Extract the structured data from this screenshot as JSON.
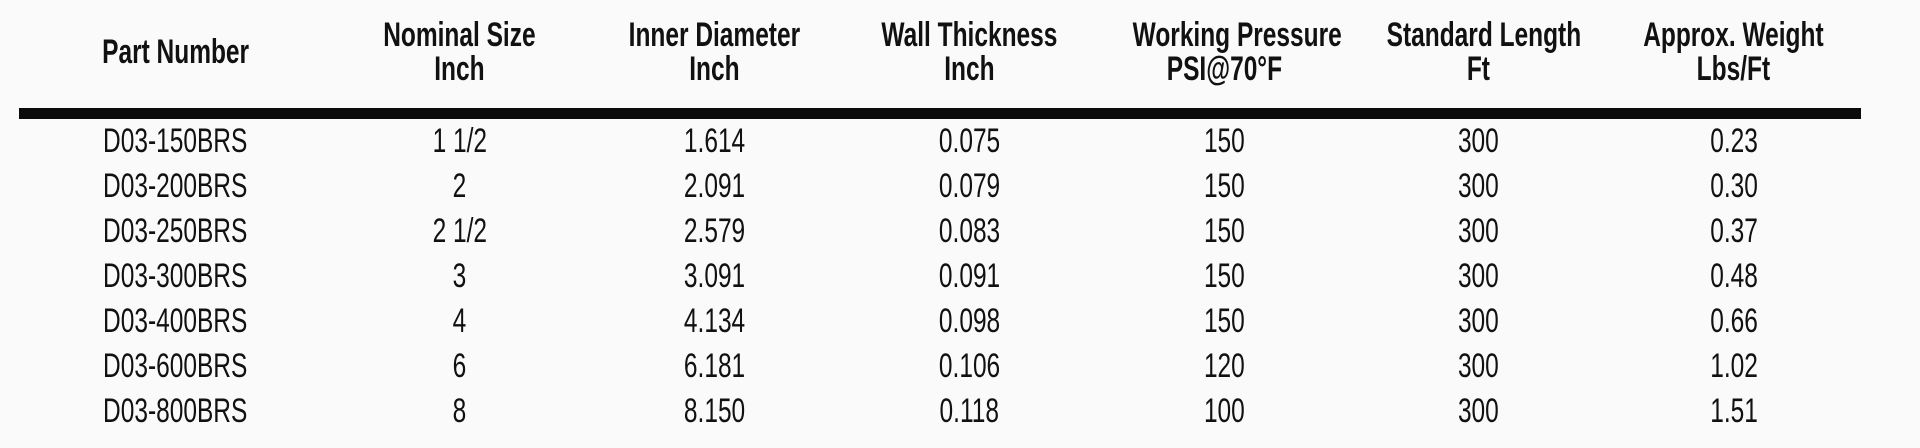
{
  "colors": {
    "background": "#fafafa",
    "text": "#111111",
    "header_divider": "#0b0b0b"
  },
  "table": {
    "columns": [
      {
        "line1": "Part Number",
        "line2": ""
      },
      {
        "line1": "Nominal Size",
        "line2": "Inch"
      },
      {
        "line1": "Inner Diameter",
        "line2": "Inch"
      },
      {
        "line1": "Wall Thickness",
        "line2": "Inch"
      },
      {
        "line1": "Working Pressure",
        "line2": "PSI@70°F"
      },
      {
        "line1": "Standard Length",
        "line2": "Ft"
      },
      {
        "line1": "Approx. Weight",
        "line2": "Lbs/Ft"
      }
    ],
    "rows": [
      [
        "D03-150BRS",
        "1 1/2",
        "1.614",
        "0.075",
        "150",
        "300",
        "0.23"
      ],
      [
        "D03-200BRS",
        "2",
        "2.091",
        "0.079",
        "150",
        "300",
        "0.30"
      ],
      [
        "D03-250BRS",
        "2 1/2",
        "2.579",
        "0.083",
        "150",
        "300",
        "0.37"
      ],
      [
        "D03-300BRS",
        "3",
        "3.091",
        "0.091",
        "150",
        "300",
        "0.48"
      ],
      [
        "D03-400BRS",
        "4",
        "4.134",
        "0.098",
        "150",
        "300",
        "0.66"
      ],
      [
        "D03-600BRS",
        "6",
        "6.181",
        "0.106",
        "120",
        "300",
        "1.02"
      ],
      [
        "D03-800BRS",
        "8",
        "8.150",
        "0.118",
        "100",
        "300",
        "1.51"
      ]
    ]
  }
}
